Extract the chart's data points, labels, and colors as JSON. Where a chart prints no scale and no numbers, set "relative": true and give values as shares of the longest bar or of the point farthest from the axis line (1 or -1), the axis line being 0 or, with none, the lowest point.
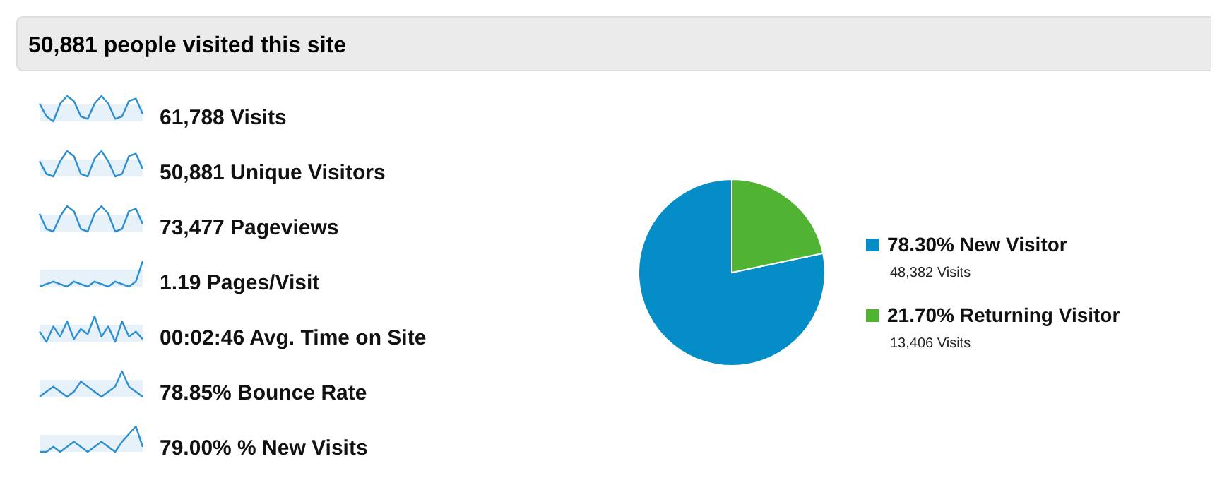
{
  "chart_data": [
    {
      "type": "other",
      "title": "50,881 people visited this site",
      "annotations": [
        "61,788 Visits",
        "50,881 Unique Visitors",
        "73,477 Pageviews",
        "1.19 Pages/Visit",
        "00:02:46 Avg. Time on Site",
        "78.85% Bounce Rate",
        "79.00% % New Visits"
      ]
    },
    {
      "type": "line",
      "relative": true,
      "color": "#2d8fd0",
      "categories": [
        null,
        null,
        null,
        null,
        null,
        null,
        null,
        null,
        null,
        null,
        null,
        null,
        null,
        null,
        null,
        null
      ],
      "values": [
        0.7,
        0.2,
        0,
        0.7,
        1,
        0.8,
        0.2,
        0.1,
        0.7,
        1,
        0.7,
        0.1,
        0.2,
        0.8,
        0.9,
        0.3
      ]
    },
    {
      "type": "line",
      "relative": true,
      "color": "#2d8fd0",
      "categories": [
        null,
        null,
        null,
        null,
        null,
        null,
        null,
        null,
        null,
        null,
        null,
        null,
        null,
        null,
        null,
        null
      ],
      "values": [
        0.6,
        0.1,
        0,
        0.6,
        1,
        0.8,
        0.1,
        0,
        0.7,
        1,
        0.6,
        0,
        0.1,
        0.8,
        0.9,
        0.3
      ]
    },
    {
      "type": "line",
      "relative": true,
      "color": "#2d8fd0",
      "categories": [
        null,
        null,
        null,
        null,
        null,
        null,
        null,
        null,
        null,
        null,
        null,
        null,
        null,
        null,
        null,
        null
      ],
      "values": [
        0.7,
        0.1,
        0,
        0.6,
        1,
        0.8,
        0.1,
        0,
        0.7,
        1,
        0.7,
        0,
        0.1,
        0.8,
        0.9,
        0.3
      ]
    },
    {
      "type": "line",
      "relative": true,
      "color": "#2d8fd0",
      "categories": [
        null,
        null,
        null,
        null,
        null,
        null,
        null,
        null,
        null,
        null,
        null,
        null,
        null,
        null,
        null,
        null
      ],
      "values": [
        0,
        0.1,
        0.2,
        0.1,
        0,
        0.2,
        0.1,
        0,
        0.2,
        0.1,
        0,
        0.2,
        0.1,
        0,
        0.2,
        1
      ]
    },
    {
      "type": "line",
      "relative": true,
      "color": "#2d8fd0",
      "categories": [
        null,
        null,
        null,
        null,
        null,
        null,
        null,
        null,
        null,
        null,
        null,
        null,
        null,
        null,
        null,
        null
      ],
      "values": [
        0.4,
        0,
        0.6,
        0.2,
        0.8,
        0.1,
        0.5,
        0.3,
        1,
        0.2,
        0.6,
        0,
        0.8,
        0.2,
        0.4,
        0.1
      ]
    },
    {
      "type": "line",
      "relative": true,
      "color": "#2d8fd0",
      "categories": [
        null,
        null,
        null,
        null,
        null,
        null,
        null,
        null,
        null,
        null,
        null,
        null,
        null,
        null,
        null,
        null
      ],
      "values": [
        0,
        0.2,
        0.4,
        0.2,
        0,
        0.2,
        0.6,
        0.4,
        0.2,
        0,
        0.2,
        0.4,
        1,
        0.4,
        0.2,
        0
      ]
    },
    {
      "type": "line",
      "relative": true,
      "color": "#2d8fd0",
      "categories": [
        null,
        null,
        null,
        null,
        null,
        null,
        null,
        null,
        null,
        null,
        null,
        null,
        null,
        null,
        null,
        null
      ],
      "values": [
        0,
        0,
        0.2,
        0,
        0.2,
        0.4,
        0.2,
        0,
        0.2,
        0.4,
        0.2,
        0,
        0.4,
        0.7,
        1,
        0.2
      ]
    },
    {
      "type": "pie",
      "categories": [
        "New Visitor",
        "Returning Visitor"
      ],
      "values": [
        78.3,
        21.7
      ],
      "colors": [
        "#058dc7",
        "#50b432"
      ],
      "value_labels": [
        "78.30%",
        "21.70%"
      ],
      "annotations": [
        "48,382 Visits",
        "13,406 Visits"
      ],
      "legend": "right"
    }
  ]
}
